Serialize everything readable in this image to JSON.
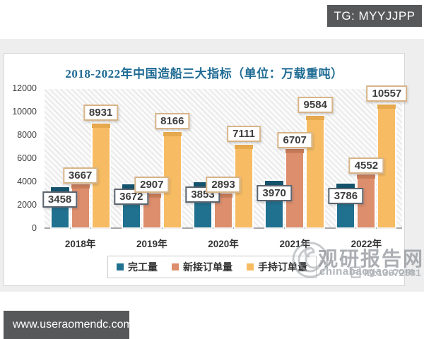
{
  "overlays": {
    "tg_badge": "TG: MYYJJPP",
    "site_badge": "www.useraomendc.com"
  },
  "watermark": {
    "brand": "观研报告网",
    "domain": "chinabaogao.com",
    "id_label": "ID:13672581"
  },
  "chart_data": {
    "type": "bar",
    "title": "2018-2022年中国造船三大指标（单位：万载重吨）",
    "title_color": "#1e6b94",
    "categories": [
      "2018年",
      "2019年",
      "2020年",
      "2021年",
      "2022年"
    ],
    "series": [
      {
        "name": "完工量",
        "color": "#20708f",
        "cap_color": "#15526c",
        "label_border": "#5a6570",
        "values": [
          3458,
          3672,
          3853,
          3970,
          3786
        ]
      },
      {
        "name": "新接订单量",
        "color": "#dc8e6d",
        "cap_color": "#c87c59",
        "label_border": "#d8b488",
        "values": [
          3667,
          2907,
          2893,
          6707,
          4552
        ]
      },
      {
        "name": "手持订单量",
        "color": "#f7bc63",
        "cap_color": "#e6a94d",
        "label_border": "#d8b488",
        "values": [
          8931,
          8166,
          7111,
          9584,
          10557
        ]
      }
    ],
    "ylim": [
      0,
      12000
    ],
    "yticks": [
      0,
      2000,
      4000,
      6000,
      8000,
      10000,
      12000
    ],
    "xlabel": "",
    "ylabel": "",
    "legend_position": "bottom",
    "grid": false,
    "plot_background": "diagonal-hatch"
  }
}
